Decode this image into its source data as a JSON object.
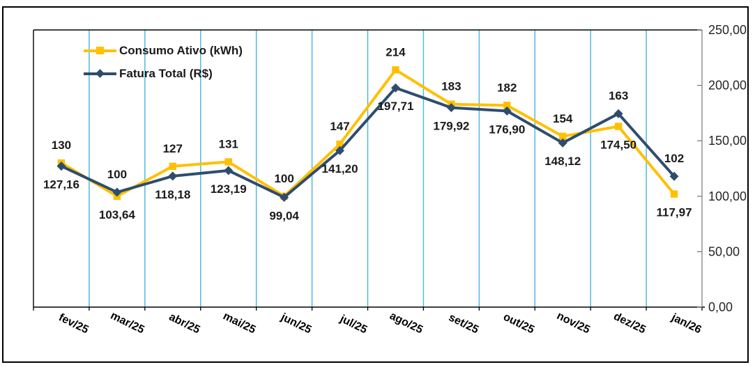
{
  "chart_data": {
    "type": "line",
    "title": "",
    "categories": [
      "fev/25",
      "mar/25",
      "abr/25",
      "mai/25",
      "jun/25",
      "jul/25",
      "ago/25",
      "set/25",
      "out/25",
      "nov/25",
      "dez/25",
      "jan/26"
    ],
    "series": [
      {
        "name": "Consumo Ativo (kWh)",
        "color": "#FFC000",
        "marker": "square",
        "values": [
          130,
          100,
          127,
          131,
          100,
          147,
          214,
          183,
          182,
          154,
          163,
          102
        ],
        "labels": [
          "130",
          "100",
          "127",
          "131",
          "100",
          "147",
          "214",
          "183",
          "182",
          "154",
          "163",
          "102"
        ]
      },
      {
        "name": "Fatura Total (R$)",
        "color": "#2E4D6E",
        "marker": "diamond",
        "values": [
          127.16,
          103.64,
          118.18,
          123.19,
          99.04,
          141.2,
          197.71,
          179.92,
          176.9,
          148.12,
          174.5,
          117.97
        ],
        "labels": [
          "127,16",
          "103,64",
          "118,18",
          "123,19",
          "99,04",
          "141,20",
          "197,71",
          "179,92",
          "176,90",
          "148,12",
          "174,50",
          "117,97"
        ]
      }
    ],
    "y_axis": {
      "position": "right",
      "min": 0,
      "max": 250,
      "step": 50,
      "tick_labels": [
        "0,00",
        "50,00",
        "100,00",
        "150,00",
        "200,00",
        "250,00"
      ]
    },
    "x_axis": {
      "label_rotation_deg": 26
    },
    "gridlines": {
      "vertical": true,
      "horizontal": false,
      "color": "#4FB9E2"
    },
    "legend": {
      "position": "top-left"
    },
    "style": {
      "data_label_color": "#1a1a1a",
      "x_axis_color": "#000000",
      "y_axis_color": "#7F7F7F",
      "plot_border_color": "#000000"
    }
  }
}
